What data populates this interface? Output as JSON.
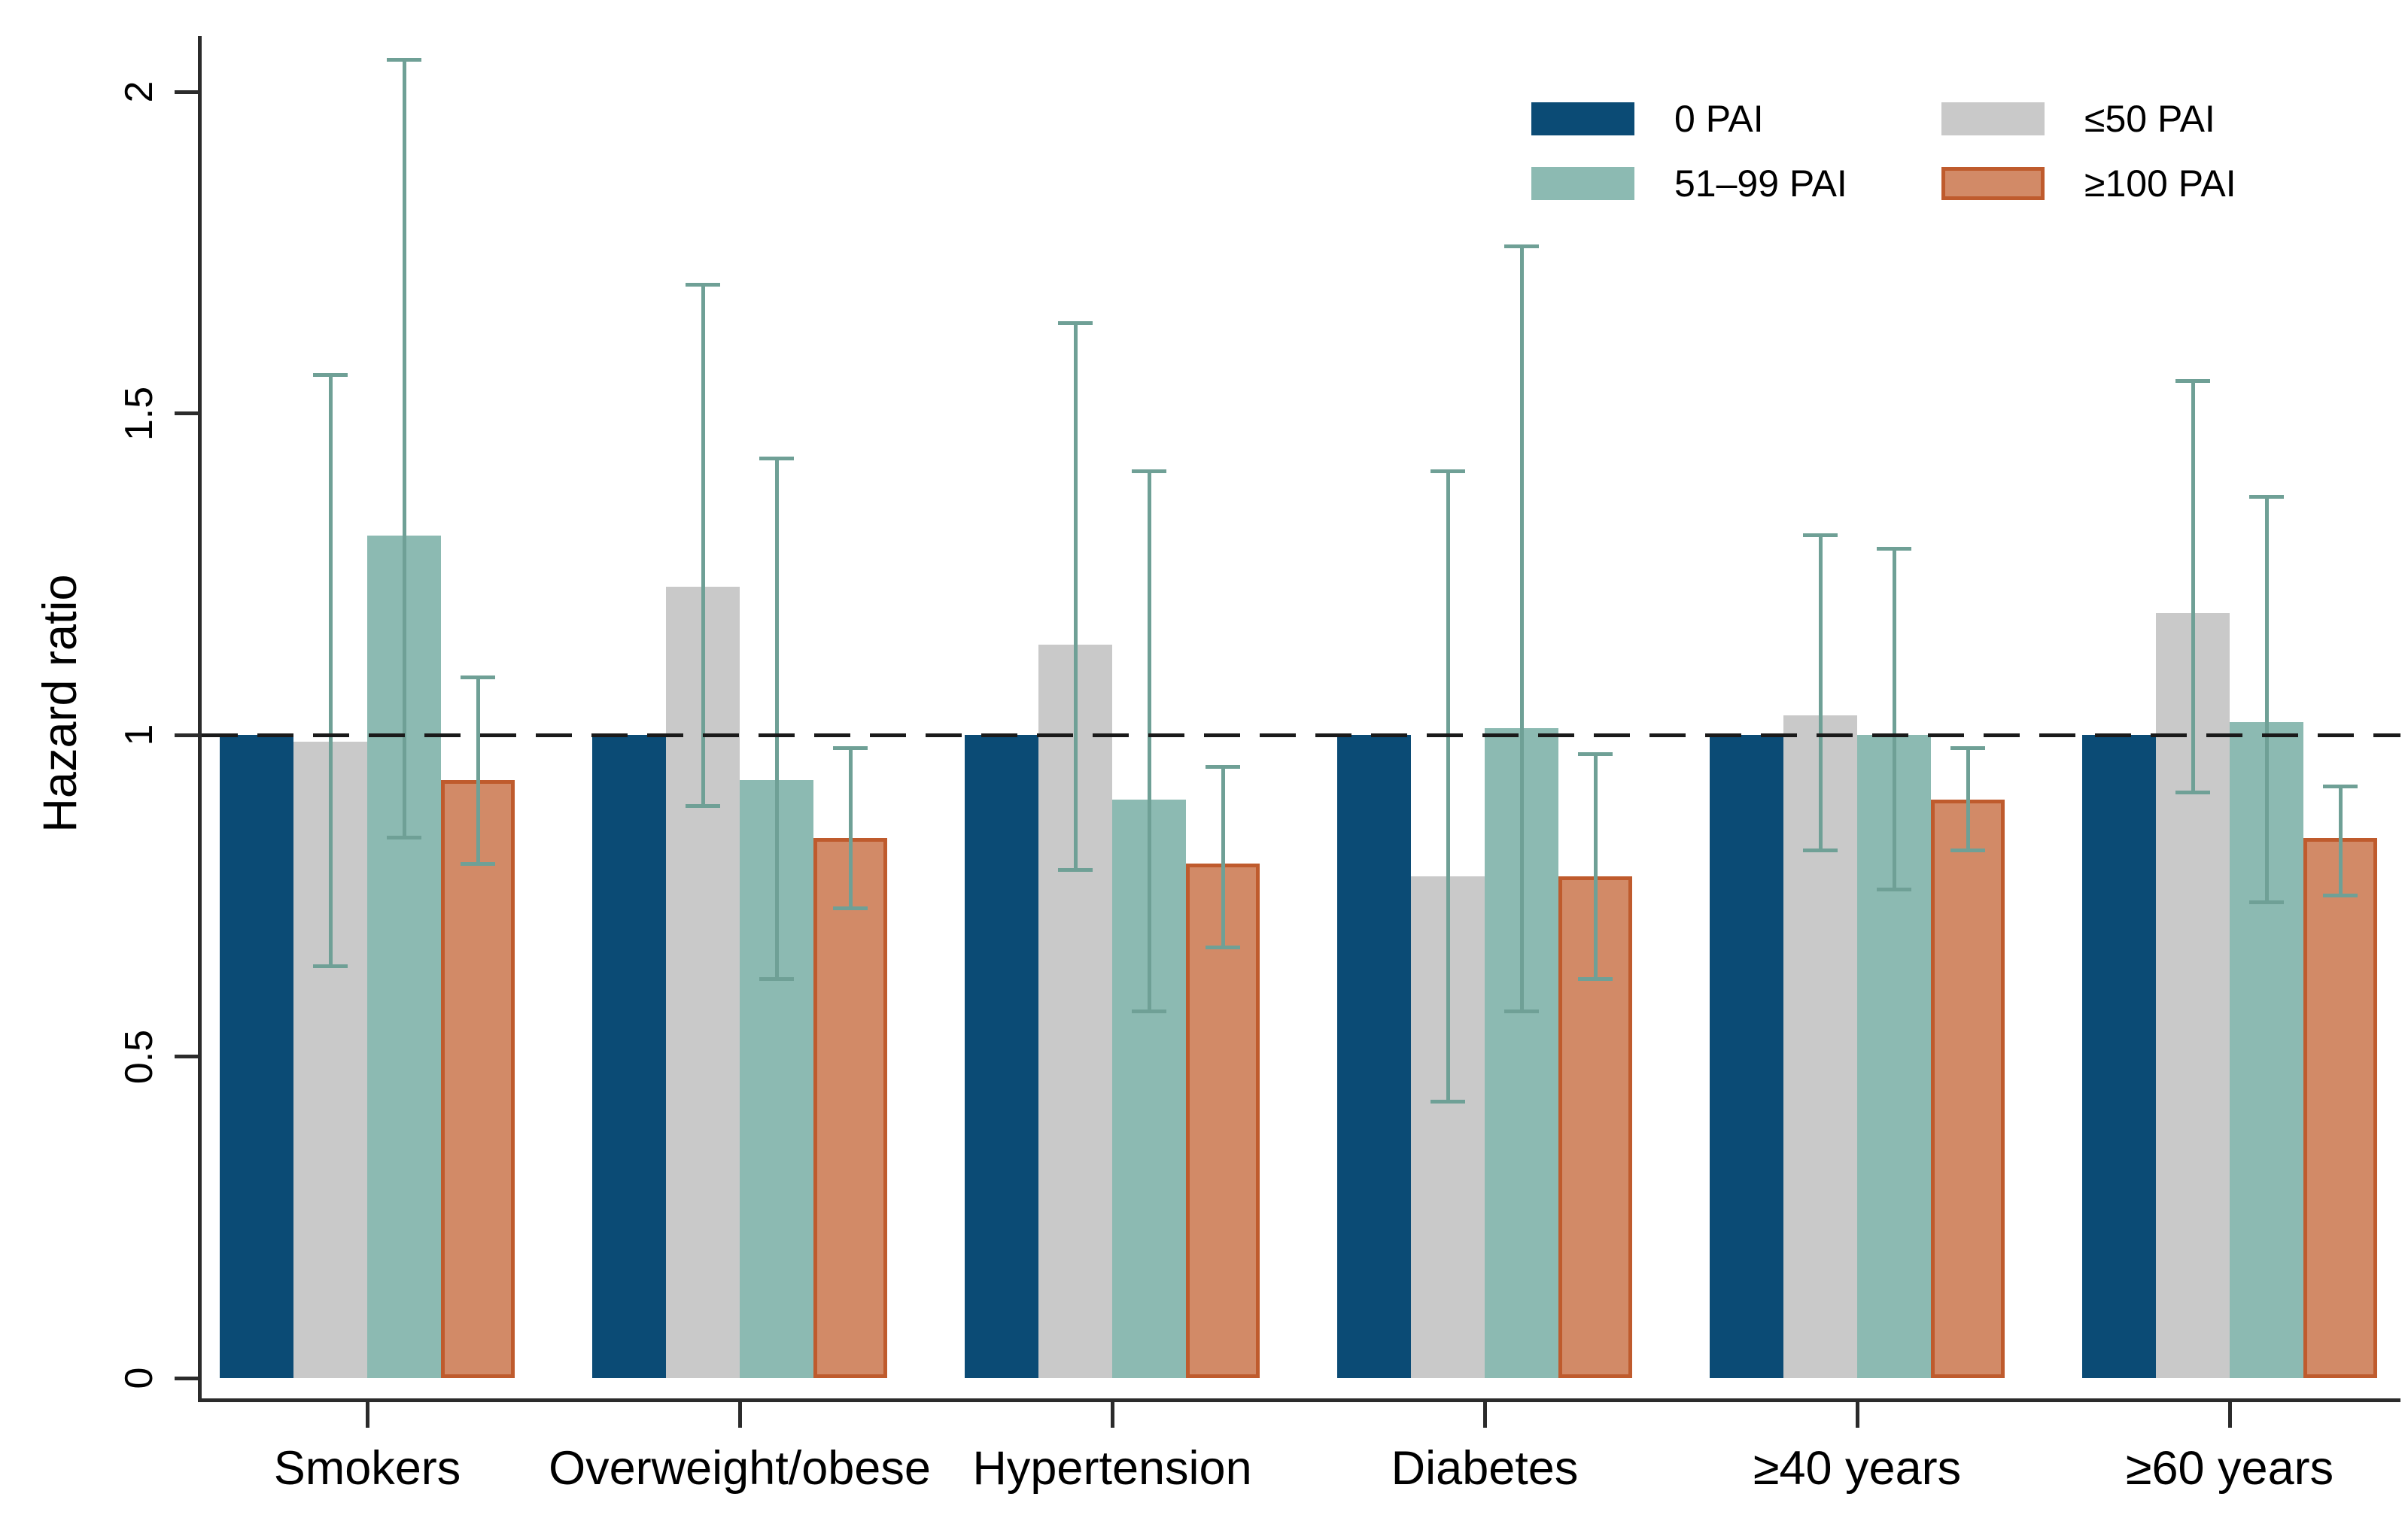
{
  "chart_data": {
    "type": "bar",
    "title": "",
    "xlabel": "",
    "ylabel": "Hazard ratio",
    "ylim": [
      0,
      2.1
    ],
    "yticks": [
      "0",
      "0.5",
      "1",
      "1.5",
      "2"
    ],
    "ytick_values": [
      0,
      0.5,
      1,
      1.5,
      2
    ],
    "grid": false,
    "reference_line": 1,
    "legend_position": "top-right",
    "error_bar_color": "#6FA096",
    "categories": [
      "Smokers",
      "Overweight/obese",
      "Hypertension",
      "Diabetes",
      "≥40 years",
      "≥60 years"
    ],
    "series": [
      {
        "name": "0 PAI",
        "color": "#0B4B75",
        "values": [
          1.0,
          1.0,
          1.0,
          1.0,
          1.0,
          1.0
        ]
      },
      {
        "name": "≤50 PAI",
        "color": "#C9C9C9",
        "values": [
          0.99,
          1.23,
          1.14,
          0.78,
          1.03,
          1.19
        ],
        "ci_low": [
          0.64,
          0.89,
          0.79,
          0.43,
          0.82,
          0.91
        ],
        "ci_high": [
          1.56,
          1.7,
          1.64,
          1.41,
          1.31,
          1.55
        ]
      },
      {
        "name": "51–99 PAI",
        "color": "#8CBAB2",
        "values": [
          1.31,
          0.93,
          0.9,
          1.01,
          1.0,
          1.02
        ],
        "ci_low": [
          0.84,
          0.62,
          0.57,
          0.57,
          0.76,
          0.74
        ],
        "ci_high": [
          2.05,
          1.43,
          1.41,
          1.76,
          1.29,
          1.37
        ]
      },
      {
        "name": "≥100 PAI",
        "color": "#D28A67",
        "border_color": "#BF5B2D",
        "values": [
          0.93,
          0.84,
          0.8,
          0.78,
          0.9,
          0.84
        ],
        "ci_low": [
          0.8,
          0.73,
          0.67,
          0.62,
          0.82,
          0.75
        ],
        "ci_high": [
          1.09,
          0.98,
          0.95,
          0.97,
          0.98,
          0.92
        ]
      }
    ],
    "legend_columns": [
      [
        "0 PAI",
        "51–99 PAI"
      ],
      [
        "≤50 PAI",
        "≥100 PAI"
      ]
    ]
  }
}
